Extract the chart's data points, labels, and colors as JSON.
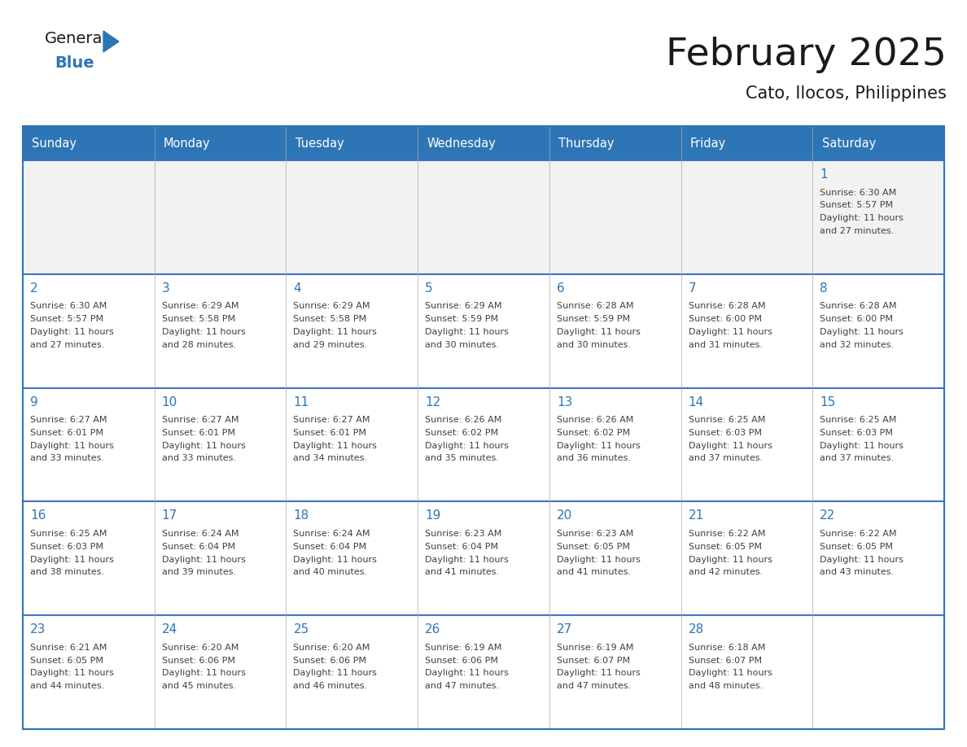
{
  "title": "February 2025",
  "subtitle": "Cato, Ilocos, Philippines",
  "header_bg": "#2E75B6",
  "header_text_color": "#FFFFFF",
  "cell_bg_white": "#FFFFFF",
  "cell_bg_gray": "#F2F2F2",
  "border_color": "#2E75B6",
  "row_line_color": "#4472C4",
  "day_names": [
    "Sunday",
    "Monday",
    "Tuesday",
    "Wednesday",
    "Thursday",
    "Friday",
    "Saturday"
  ],
  "title_color": "#1a1a1a",
  "subtitle_color": "#1a1a1a",
  "day_number_color": "#2E75B6",
  "cell_text_color": "#404040",
  "calendar": [
    [
      null,
      null,
      null,
      null,
      null,
      null,
      {
        "day": 1,
        "sunrise": "6:30 AM",
        "sunset": "5:57 PM",
        "daylight": "11 hours and 27 minutes."
      }
    ],
    [
      {
        "day": 2,
        "sunrise": "6:30 AM",
        "sunset": "5:57 PM",
        "daylight": "11 hours and 27 minutes."
      },
      {
        "day": 3,
        "sunrise": "6:29 AM",
        "sunset": "5:58 PM",
        "daylight": "11 hours and 28 minutes."
      },
      {
        "day": 4,
        "sunrise": "6:29 AM",
        "sunset": "5:58 PM",
        "daylight": "11 hours and 29 minutes."
      },
      {
        "day": 5,
        "sunrise": "6:29 AM",
        "sunset": "5:59 PM",
        "daylight": "11 hours and 30 minutes."
      },
      {
        "day": 6,
        "sunrise": "6:28 AM",
        "sunset": "5:59 PM",
        "daylight": "11 hours and 30 minutes."
      },
      {
        "day": 7,
        "sunrise": "6:28 AM",
        "sunset": "6:00 PM",
        "daylight": "11 hours and 31 minutes."
      },
      {
        "day": 8,
        "sunrise": "6:28 AM",
        "sunset": "6:00 PM",
        "daylight": "11 hours and 32 minutes."
      }
    ],
    [
      {
        "day": 9,
        "sunrise": "6:27 AM",
        "sunset": "6:01 PM",
        "daylight": "11 hours and 33 minutes."
      },
      {
        "day": 10,
        "sunrise": "6:27 AM",
        "sunset": "6:01 PM",
        "daylight": "11 hours and 33 minutes."
      },
      {
        "day": 11,
        "sunrise": "6:27 AM",
        "sunset": "6:01 PM",
        "daylight": "11 hours and 34 minutes."
      },
      {
        "day": 12,
        "sunrise": "6:26 AM",
        "sunset": "6:02 PM",
        "daylight": "11 hours and 35 minutes."
      },
      {
        "day": 13,
        "sunrise": "6:26 AM",
        "sunset": "6:02 PM",
        "daylight": "11 hours and 36 minutes."
      },
      {
        "day": 14,
        "sunrise": "6:25 AM",
        "sunset": "6:03 PM",
        "daylight": "11 hours and 37 minutes."
      },
      {
        "day": 15,
        "sunrise": "6:25 AM",
        "sunset": "6:03 PM",
        "daylight": "11 hours and 37 minutes."
      }
    ],
    [
      {
        "day": 16,
        "sunrise": "6:25 AM",
        "sunset": "6:03 PM",
        "daylight": "11 hours and 38 minutes."
      },
      {
        "day": 17,
        "sunrise": "6:24 AM",
        "sunset": "6:04 PM",
        "daylight": "11 hours and 39 minutes."
      },
      {
        "day": 18,
        "sunrise": "6:24 AM",
        "sunset": "6:04 PM",
        "daylight": "11 hours and 40 minutes."
      },
      {
        "day": 19,
        "sunrise": "6:23 AM",
        "sunset": "6:04 PM",
        "daylight": "11 hours and 41 minutes."
      },
      {
        "day": 20,
        "sunrise": "6:23 AM",
        "sunset": "6:05 PM",
        "daylight": "11 hours and 41 minutes."
      },
      {
        "day": 21,
        "sunrise": "6:22 AM",
        "sunset": "6:05 PM",
        "daylight": "11 hours and 42 minutes."
      },
      {
        "day": 22,
        "sunrise": "6:22 AM",
        "sunset": "6:05 PM",
        "daylight": "11 hours and 43 minutes."
      }
    ],
    [
      {
        "day": 23,
        "sunrise": "6:21 AM",
        "sunset": "6:05 PM",
        "daylight": "11 hours and 44 minutes."
      },
      {
        "day": 24,
        "sunrise": "6:20 AM",
        "sunset": "6:06 PM",
        "daylight": "11 hours and 45 minutes."
      },
      {
        "day": 25,
        "sunrise": "6:20 AM",
        "sunset": "6:06 PM",
        "daylight": "11 hours and 46 minutes."
      },
      {
        "day": 26,
        "sunrise": "6:19 AM",
        "sunset": "6:06 PM",
        "daylight": "11 hours and 47 minutes."
      },
      {
        "day": 27,
        "sunrise": "6:19 AM",
        "sunset": "6:07 PM",
        "daylight": "11 hours and 47 minutes."
      },
      {
        "day": 28,
        "sunrise": "6:18 AM",
        "sunset": "6:07 PM",
        "daylight": "11 hours and 48 minutes."
      },
      null
    ]
  ],
  "logo_general_color": "#1a1a1a",
  "logo_blue_color": "#2E75B6",
  "fig_width": 11.88,
  "fig_height": 9.18,
  "dpi": 100
}
